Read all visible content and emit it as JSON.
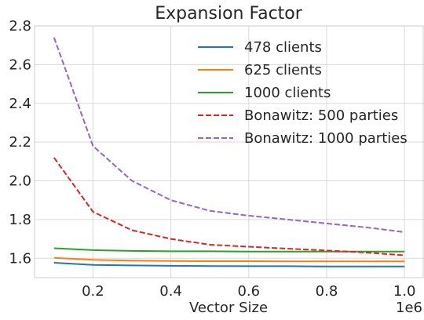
{
  "chart_data": {
    "type": "line",
    "title": "Expansion Factor",
    "xlabel": "Vector Size",
    "ylabel": "",
    "x_offset_label": "1e6",
    "xlim": [
      0.05,
      1.05
    ],
    "ylim": [
      1.5,
      2.8
    ],
    "x_ticks": [
      0.2,
      0.4,
      0.6,
      0.8,
      1.0
    ],
    "x_tick_labels": [
      "0.2",
      "0.4",
      "0.6",
      "0.8",
      "1.0"
    ],
    "y_ticks": [
      1.6,
      1.8,
      2.0,
      2.2,
      2.4,
      2.6,
      2.8
    ],
    "y_tick_labels": [
      "1.6",
      "1.8",
      "2.0",
      "2.2",
      "2.4",
      "2.6",
      "2.8"
    ],
    "grid": true,
    "legend_position": "top-right",
    "x": [
      0.1,
      0.2,
      0.3,
      0.4,
      0.5,
      0.6,
      0.7,
      0.8,
      0.9,
      1.0
    ],
    "series": [
      {
        "name": "478 clients",
        "color": "#1f77b4",
        "dash": "solid",
        "values": [
          1.577,
          1.566,
          1.563,
          1.561,
          1.56,
          1.559,
          1.559,
          1.558,
          1.558,
          1.558
        ]
      },
      {
        "name": "625 clients",
        "color": "#ff7f0e",
        "dash": "solid",
        "values": [
          1.602,
          1.592,
          1.588,
          1.586,
          1.585,
          1.585,
          1.584,
          1.584,
          1.584,
          1.584
        ]
      },
      {
        "name": "1000 clients",
        "color": "#2ca02c",
        "dash": "solid",
        "values": [
          1.652,
          1.642,
          1.638,
          1.636,
          1.636,
          1.635,
          1.635,
          1.635,
          1.635,
          1.635
        ]
      },
      {
        "name": "Bonawitz: 500 parties",
        "color": "#d62728",
        "dash": "dashed",
        "values": [
          2.12,
          1.84,
          1.745,
          1.7,
          1.67,
          1.66,
          1.65,
          1.64,
          1.63,
          1.615
        ]
      },
      {
        "name": "Bonawitz: 1000 parties",
        "color": "#9467bd",
        "dash": "dashed",
        "values": [
          2.74,
          2.18,
          2.0,
          1.9,
          1.845,
          1.82,
          1.8,
          1.78,
          1.76,
          1.735
        ]
      }
    ]
  }
}
